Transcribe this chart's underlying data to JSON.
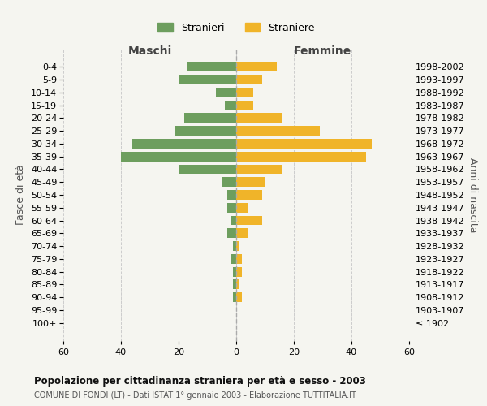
{
  "age_groups": [
    "0-4",
    "5-9",
    "10-14",
    "15-19",
    "20-24",
    "25-29",
    "30-34",
    "35-39",
    "40-44",
    "45-49",
    "50-54",
    "55-59",
    "60-64",
    "65-69",
    "70-74",
    "75-79",
    "80-84",
    "85-89",
    "90-94",
    "95-99",
    "100+"
  ],
  "birth_years": [
    "1998-2002",
    "1993-1997",
    "1988-1992",
    "1983-1987",
    "1978-1982",
    "1973-1977",
    "1968-1972",
    "1963-1967",
    "1958-1962",
    "1953-1957",
    "1948-1952",
    "1943-1947",
    "1938-1942",
    "1933-1937",
    "1928-1932",
    "1923-1927",
    "1918-1922",
    "1913-1917",
    "1908-1912",
    "1903-1907",
    "≤ 1902"
  ],
  "maschi": [
    17,
    20,
    7,
    4,
    18,
    21,
    36,
    40,
    20,
    5,
    3,
    3,
    2,
    3,
    1,
    2,
    1,
    1,
    1,
    0,
    0
  ],
  "femmine": [
    14,
    9,
    6,
    6,
    16,
    29,
    47,
    45,
    16,
    10,
    9,
    4,
    9,
    4,
    1,
    2,
    2,
    1,
    2,
    0,
    0
  ],
  "maschi_color": "#6d9e5e",
  "femmine_color": "#f0b429",
  "background_color": "#f5f5f0",
  "grid_color": "#cccccc",
  "title": "Popolazione per cittadinanza straniera per età e sesso - 2003",
  "subtitle": "COMUNE DI FONDI (LT) - Dati ISTAT 1° gennaio 2003 - Elaborazione TUTTITALIA.IT",
  "label_maschi": "Maschi",
  "label_femmine": "Femmine",
  "ylabel_left": "Fasce di età",
  "ylabel_right": "Anni di nascita",
  "xlim": 60,
  "legend_labels": [
    "Stranieri",
    "Straniere"
  ]
}
